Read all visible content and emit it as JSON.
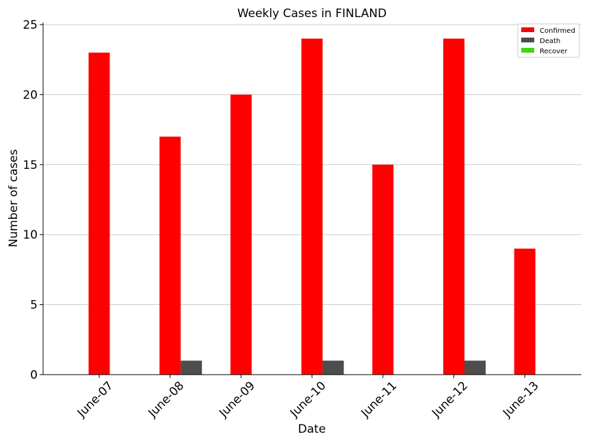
{
  "chart_data": {
    "type": "bar",
    "title": "Weekly Cases in FINLAND",
    "xlabel": "Date",
    "ylabel": "Number of cases",
    "categories": [
      "June-07",
      "June-08",
      "June-09",
      "June-10",
      "June-11",
      "June-12",
      "June-13"
    ],
    "series": [
      {
        "name": "Confirmed",
        "color": "#ff0000",
        "values": [
          23,
          17,
          20,
          24,
          15,
          24,
          9
        ]
      },
      {
        "name": "Death",
        "color": "#4d4d4d",
        "values": [
          0,
          1,
          0,
          1,
          0,
          1,
          0
        ]
      },
      {
        "name": "Recover",
        "color": "#44d410",
        "values": [
          0,
          0,
          0,
          0,
          0,
          0,
          0
        ]
      }
    ],
    "ylim": [
      0,
      25
    ],
    "yticks": [
      0,
      5,
      10,
      15,
      20,
      25
    ],
    "grid": "horizontal",
    "legend_position": "top-right"
  }
}
